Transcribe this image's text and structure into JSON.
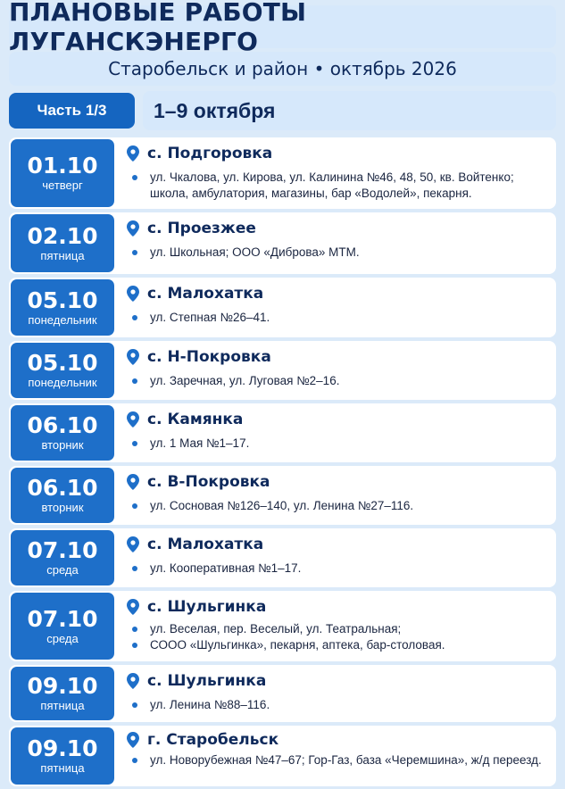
{
  "header": {
    "title": "ПЛАНОВЫЕ РАБОТЫ ЛУГАНСКЭНЕРГО",
    "subtitle": "Старобельск и район • октябрь 2026"
  },
  "part": {
    "label": "Часть 1/3",
    "range": "1–9 октября"
  },
  "colors": {
    "accent": "#1e6fc9",
    "dark_text": "#0f2a5c",
    "background": "#dbeaf9"
  },
  "entries": [
    {
      "date": "01.10",
      "weekday": "четверг",
      "place": "с. Подгоровка",
      "items": [
        "ул. Чкалова, ул. Кирова, ул. Калинина №46, 48, 50, кв. Войтенко; школа, амбулатория, магазины, бар «Водолей», пекарня."
      ]
    },
    {
      "date": "02.10",
      "weekday": "пятница",
      "place": "с. Проезжее",
      "items": [
        "ул. Школьная; ООО «Диброва» МТМ."
      ]
    },
    {
      "date": "05.10",
      "weekday": "понедельник",
      "place": "с. Малохатка",
      "items": [
        "ул. Степная №26–41."
      ]
    },
    {
      "date": "05.10",
      "weekday": "понедельник",
      "place": "с. Н-Покровка",
      "items": [
        "ул. Заречная, ул. Луговая №2–16."
      ]
    },
    {
      "date": "06.10",
      "weekday": "вторник",
      "place": "с. Камянка",
      "items": [
        "ул. 1 Мая №1–17."
      ]
    },
    {
      "date": "06.10",
      "weekday": "вторник",
      "place": "с. В-Покровка",
      "items": [
        "ул. Сосновая №126–140, ул. Ленина №27–116."
      ]
    },
    {
      "date": "07.10",
      "weekday": "среда",
      "place": "с. Малохатка",
      "items": [
        "ул. Кооперативная №1–17."
      ]
    },
    {
      "date": "07.10",
      "weekday": "среда",
      "place": "с. Шульгинка",
      "items": [
        "ул. Веселая, пер. Веселый, ул. Театральная;",
        "СООО «Шульгинка», пекарня, аптека, бар-столовая."
      ]
    },
    {
      "date": "09.10",
      "weekday": "пятница",
      "place": "с. Шульгинка",
      "items": [
        "ул. Ленина №88–116."
      ]
    },
    {
      "date": "09.10",
      "weekday": "пятница",
      "place": "г. Старобельск",
      "items": [
        "ул. Новорубежная №47–67; Гор-Газ, база «Черемшина», ж/д переезд."
      ]
    }
  ]
}
